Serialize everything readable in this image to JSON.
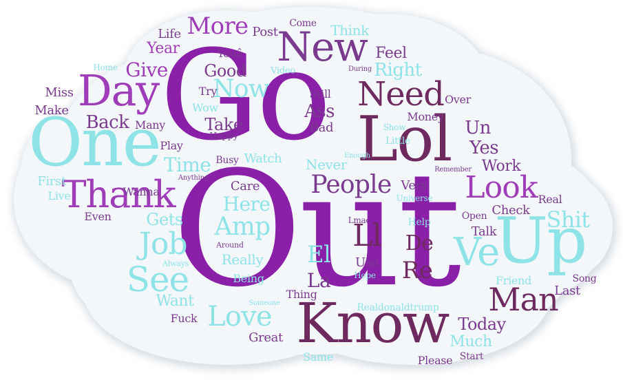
{
  "colors": {
    "background": "#ffffff",
    "cloud_fill": "#f3f7fa",
    "cloud_shadow": "#d7dde3",
    "p1": "#8a1fa8",
    "p2": "#9f3cb8",
    "p3": "#6e2a5e",
    "p4": "#7a3a8e",
    "c1": "#8ee3e6",
    "c2": "#a9e8ec"
  },
  "words": [
    {
      "text": "Out"
    },
    {
      "text": "Go"
    },
    {
      "text": "One"
    },
    {
      "text": "Know"
    },
    {
      "text": "Up"
    },
    {
      "text": "New"
    },
    {
      "text": "Lol"
    },
    {
      "text": "Day"
    },
    {
      "text": "Thank"
    },
    {
      "text": "Need"
    },
    {
      "text": "Man"
    },
    {
      "text": "Ve"
    },
    {
      "text": "Look"
    },
    {
      "text": "Job"
    },
    {
      "text": "See"
    },
    {
      "text": "People"
    },
    {
      "text": "Love"
    },
    {
      "text": "Amp"
    },
    {
      "text": "Here"
    },
    {
      "text": "Now"
    },
    {
      "text": "More"
    },
    {
      "text": "Ll"
    },
    {
      "text": "Give"
    },
    {
      "text": "Back"
    },
    {
      "text": "Shit"
    },
    {
      "text": "Re"
    },
    {
      "text": "De"
    },
    {
      "text": "El"
    },
    {
      "text": "Time"
    },
    {
      "text": "Right"
    },
    {
      "text": "Take"
    },
    {
      "text": "Good"
    },
    {
      "text": "Year"
    },
    {
      "text": "Ass"
    },
    {
      "text": "Work"
    },
    {
      "text": "Yes"
    },
    {
      "text": "Un"
    },
    {
      "text": "Gets"
    },
    {
      "text": "Want"
    },
    {
      "text": "Today"
    },
    {
      "text": "Much"
    },
    {
      "text": "La"
    },
    {
      "text": "Feel"
    },
    {
      "text": "Think"
    },
    {
      "text": "Post"
    },
    {
      "text": "Life"
    },
    {
      "text": "Miss"
    },
    {
      "text": "Make"
    },
    {
      "text": "Many"
    },
    {
      "text": "Play"
    },
    {
      "text": "Wanna"
    },
    {
      "text": "First"
    },
    {
      "text": "Live"
    },
    {
      "text": "Even"
    },
    {
      "text": "Really"
    },
    {
      "text": "Being"
    },
    {
      "text": "Care"
    },
    {
      "text": "Watch"
    },
    {
      "text": "Never"
    },
    {
      "text": "Very"
    },
    {
      "text": "Check"
    },
    {
      "text": "Real"
    },
    {
      "text": "Open"
    },
    {
      "text": "Talk"
    },
    {
      "text": "Help"
    },
    {
      "text": "Use"
    },
    {
      "text": "Hope"
    },
    {
      "text": "Friend"
    },
    {
      "text": "Last"
    },
    {
      "text": "Song"
    },
    {
      "text": "Great"
    },
    {
      "text": "Fuck"
    },
    {
      "text": "Same"
    },
    {
      "text": "Please"
    },
    {
      "text": "Start"
    },
    {
      "text": "Thing"
    },
    {
      "text": "Realdonaldtrump"
    },
    {
      "text": "Someone"
    },
    {
      "text": "Always"
    },
    {
      "text": "Around"
    },
    {
      "text": "Lmao"
    },
    {
      "text": "Universe"
    },
    {
      "text": "Remember"
    },
    {
      "text": "Little"
    },
    {
      "text": "Show"
    },
    {
      "text": "Enough"
    },
    {
      "text": "Money"
    },
    {
      "text": "Over"
    },
    {
      "text": "Still"
    },
    {
      "text": "Bad"
    },
    {
      "text": "Busy"
    },
    {
      "text": "Anything"
    },
    {
      "text": "Happy"
    },
    {
      "text": "Wow"
    },
    {
      "text": "Try"
    },
    {
      "text": "Youâ"
    },
    {
      "text": "Video"
    },
    {
      "text": "During"
    },
    {
      "text": "Come"
    },
    {
      "text": "Home"
    }
  ]
}
